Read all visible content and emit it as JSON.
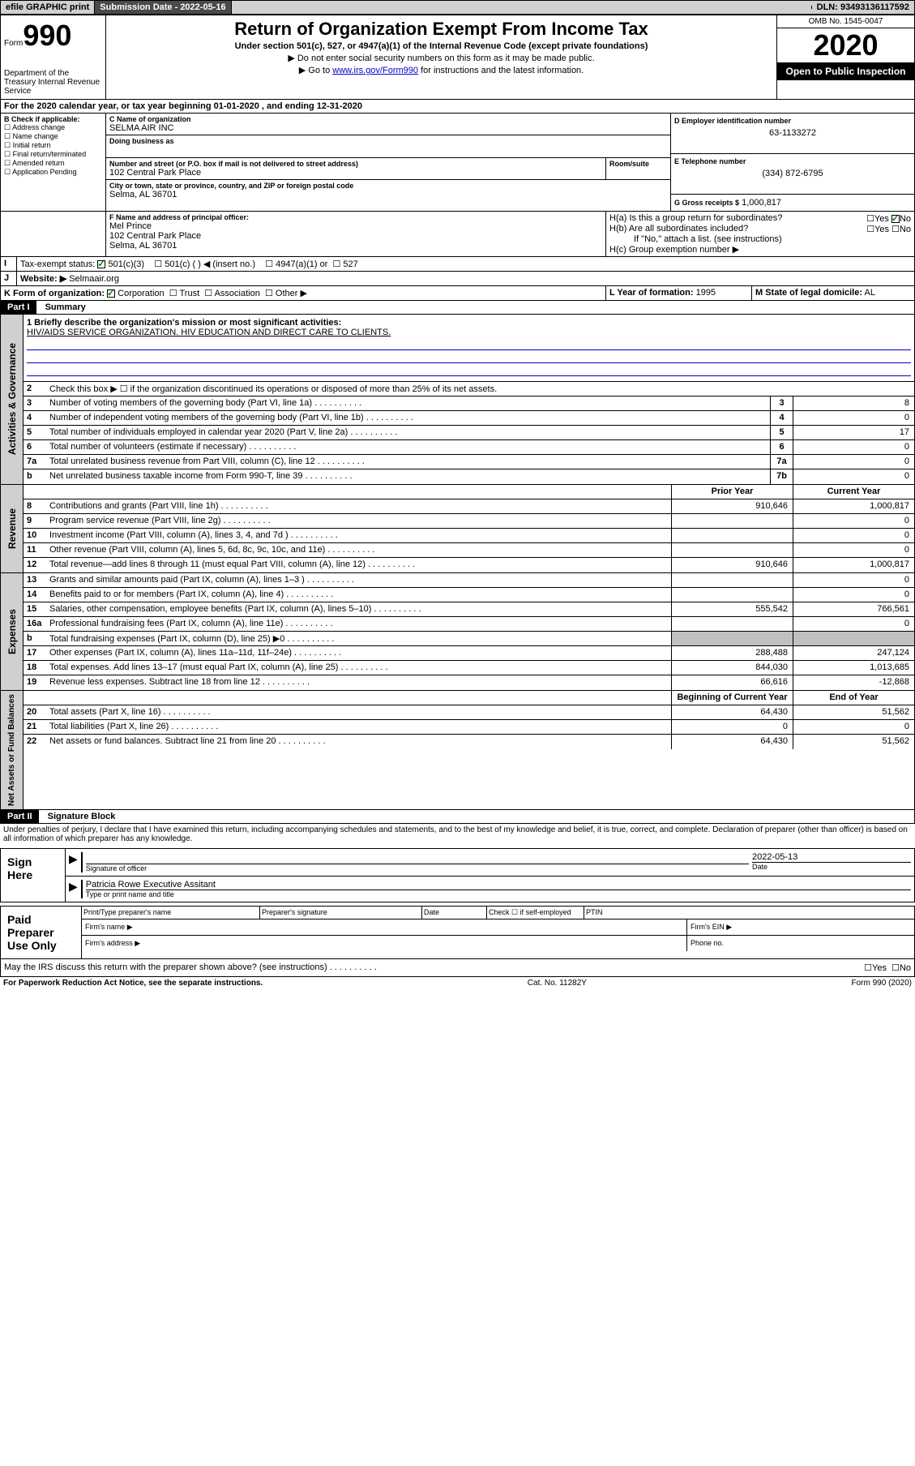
{
  "top_bar": {
    "efile": "efile GRAPHIC print",
    "submission_label": "Submission Date - 2022-05-16",
    "dln": "DLN: 93493136117592"
  },
  "header": {
    "form_label": "Form",
    "form_number": "990",
    "dept": "Department of the Treasury\nInternal Revenue Service",
    "title": "Return of Organization Exempt From Income Tax",
    "subtitle": "Under section 501(c), 527, or 4947(a)(1) of the Internal Revenue Code (except private foundations)",
    "note1": "▶ Do not enter social security numbers on this form as it may be made public.",
    "note2_pre": "▶ Go to ",
    "note2_link": "www.irs.gov/Form990",
    "note2_post": " for instructions and the latest information.",
    "omb": "OMB No. 1545-0047",
    "year": "2020",
    "open_public": "Open to Public Inspection"
  },
  "period": {
    "text": "For the 2020 calendar year, or tax year beginning 01-01-2020    , and ending 12-31-2020"
  },
  "section_b": {
    "label": "B Check if applicable:",
    "opts": [
      "Address change",
      "Name change",
      "Initial return",
      "Final return/terminated",
      "Amended return",
      "Application Pending"
    ]
  },
  "section_c": {
    "name_label": "C Name of organization",
    "name": "SELMA AIR INC",
    "dba_label": "Doing business as",
    "street_label": "Number and street (or P.O. box if mail is not delivered to street address)",
    "room_label": "Room/suite",
    "street": "102 Central Park Place",
    "city_label": "City or town, state or province, country, and ZIP or foreign postal code",
    "city": "Selma, AL  36701"
  },
  "section_d": {
    "label": "D Employer identification number",
    "value": "63-1133272"
  },
  "section_e": {
    "label": "E Telephone number",
    "value": "(334) 872-6795"
  },
  "section_g": {
    "label": "G Gross receipts $",
    "value": "1,000,817"
  },
  "section_f": {
    "label": "F Name and address of principal officer:",
    "name": "Mel Prince",
    "street": "102 Central Park Place",
    "city": "Selma, AL  36701"
  },
  "section_h": {
    "a": "H(a)  Is this a group return for subordinates?",
    "b": "H(b)  Are all subordinates included?",
    "b_note": "If \"No,\" attach a list. (see instructions)",
    "c": "H(c)  Group exemption number ▶",
    "yes": "Yes",
    "no": "No"
  },
  "section_i": {
    "label": "Tax-exempt status:",
    "opts": [
      "501(c)(3)",
      "501(c) (  ) ◀ (insert no.)",
      "4947(a)(1) or",
      "527"
    ]
  },
  "section_j": {
    "label": "Website: ▶",
    "value": "Selmaair.org"
  },
  "section_k": {
    "label": "K Form of organization:",
    "opts": [
      "Corporation",
      "Trust",
      "Association",
      "Other ▶"
    ]
  },
  "section_l": {
    "label": "L Year of formation:",
    "value": "1995"
  },
  "section_m": {
    "label": "M State of legal domicile:",
    "value": "AL"
  },
  "part1": {
    "header": "Part I",
    "title": "Summary",
    "line1_label": "1  Briefly describe the organization's mission or most significant activities:",
    "line1_text": "HIV/AIDS SERVICE ORGANIZATION. HIV EDUCATION AND DIRECT CARE TO CLIENTS.",
    "line2": "Check this box ▶ ☐  if the organization discontinued its operations or disposed of more than 25% of its net assets.",
    "governance_label": "Activities & Governance",
    "revenue_label": "Revenue",
    "expenses_label": "Expenses",
    "netassets_label": "Net Assets or Fund Balances",
    "col_prior": "Prior Year",
    "col_current": "Current Year",
    "col_begin": "Beginning of Current Year",
    "col_end": "End of Year",
    "lines_gov": [
      {
        "n": "3",
        "t": "Number of voting members of the governing body (Part VI, line 1a)",
        "v": "8"
      },
      {
        "n": "4",
        "t": "Number of independent voting members of the governing body (Part VI, line 1b)",
        "v": "0"
      },
      {
        "n": "5",
        "t": "Total number of individuals employed in calendar year 2020 (Part V, line 2a)",
        "v": "17"
      },
      {
        "n": "6",
        "t": "Total number of volunteers (estimate if necessary)",
        "v": "0"
      },
      {
        "n": "7a",
        "t": "Total unrelated business revenue from Part VIII, column (C), line 12",
        "v": "0"
      },
      {
        "n": "b",
        "t": "Net unrelated business taxable income from Form 990-T, line 39",
        "box": "7b",
        "v": "0"
      }
    ],
    "lines_rev": [
      {
        "n": "8",
        "t": "Contributions and grants (Part VIII, line 1h)",
        "p": "910,646",
        "c": "1,000,817"
      },
      {
        "n": "9",
        "t": "Program service revenue (Part VIII, line 2g)",
        "p": "",
        "c": "0"
      },
      {
        "n": "10",
        "t": "Investment income (Part VIII, column (A), lines 3, 4, and 7d )",
        "p": "",
        "c": "0"
      },
      {
        "n": "11",
        "t": "Other revenue (Part VIII, column (A), lines 5, 6d, 8c, 9c, 10c, and 11e)",
        "p": "",
        "c": "0"
      },
      {
        "n": "12",
        "t": "Total revenue—add lines 8 through 11 (must equal Part VIII, column (A), line 12)",
        "p": "910,646",
        "c": "1,000,817"
      }
    ],
    "lines_exp": [
      {
        "n": "13",
        "t": "Grants and similar amounts paid (Part IX, column (A), lines 1–3 )",
        "p": "",
        "c": "0"
      },
      {
        "n": "14",
        "t": "Benefits paid to or for members (Part IX, column (A), line 4)",
        "p": "",
        "c": "0"
      },
      {
        "n": "15",
        "t": "Salaries, other compensation, employee benefits (Part IX, column (A), lines 5–10)",
        "p": "555,542",
        "c": "766,561"
      },
      {
        "n": "16a",
        "t": "Professional fundraising fees (Part IX, column (A), line 11e)",
        "p": "",
        "c": "0"
      },
      {
        "n": "b",
        "t": "Total fundraising expenses (Part IX, column (D), line 25) ▶0",
        "p": "shaded",
        "c": "shaded"
      },
      {
        "n": "17",
        "t": "Other expenses (Part IX, column (A), lines 11a–11d, 11f–24e)",
        "p": "288,488",
        "c": "247,124"
      },
      {
        "n": "18",
        "t": "Total expenses. Add lines 13–17 (must equal Part IX, column (A), line 25)",
        "p": "844,030",
        "c": "1,013,685"
      },
      {
        "n": "19",
        "t": "Revenue less expenses. Subtract line 18 from line 12",
        "p": "66,616",
        "c": "-12,868"
      }
    ],
    "lines_net": [
      {
        "n": "20",
        "t": "Total assets (Part X, line 16)",
        "p": "64,430",
        "c": "51,562"
      },
      {
        "n": "21",
        "t": "Total liabilities (Part X, line 26)",
        "p": "0",
        "c": "0"
      },
      {
        "n": "22",
        "t": "Net assets or fund balances. Subtract line 21 from line 20",
        "p": "64,430",
        "c": "51,562"
      }
    ]
  },
  "part2": {
    "header": "Part II",
    "title": "Signature Block",
    "declaration": "Under penalties of perjury, I declare that I have examined this return, including accompanying schedules and statements, and to the best of my knowledge and belief, it is true, correct, and complete. Declaration of preparer (other than officer) is based on all information of which preparer has any knowledge.",
    "sign_here": "Sign Here",
    "sig_officer": "Signature of officer",
    "sig_date": "2022-05-13",
    "date_label": "Date",
    "sig_name": "Patricia Rowe  Executive Assitant",
    "sig_name_label": "Type or print name and title",
    "paid_label": "Paid Preparer Use Only",
    "prep_name": "Print/Type preparer's name",
    "prep_sig": "Preparer's signature",
    "prep_date": "Date",
    "prep_check": "Check ☐ if self-employed",
    "ptin": "PTIN",
    "firm_name": "Firm's name   ▶",
    "firm_ein": "Firm's EIN ▶",
    "firm_addr": "Firm's address ▶",
    "phone": "Phone no.",
    "discuss": "May the IRS discuss this return with the preparer shown above? (see instructions)"
  },
  "footer": {
    "left": "For Paperwork Reduction Act Notice, see the separate instructions.",
    "mid": "Cat. No. 11282Y",
    "right": "Form 990 (2020)"
  }
}
